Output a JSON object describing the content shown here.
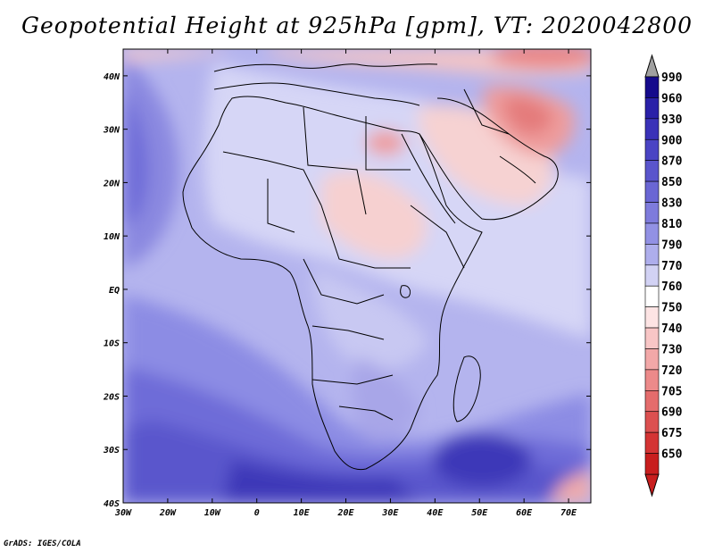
{
  "title": "Geopotential Height at 925hPa [gpm], VT: 2020042800",
  "credit": "GrADS: IGES/COLA",
  "map": {
    "lon_ticks": [
      "30W",
      "20W",
      "10W",
      "0",
      "10E",
      "20E",
      "30E",
      "40E",
      "50E",
      "60E",
      "70E"
    ],
    "lat_ticks": [
      "40N",
      "30N",
      "20N",
      "10N",
      "EQ",
      "10S",
      "20S",
      "30S",
      "40S"
    ],
    "lon_range": [
      -30,
      75
    ],
    "lat_range": [
      -40,
      45
    ]
  },
  "colorbar": {
    "levels": [
      "990",
      "960",
      "930",
      "900",
      "870",
      "850",
      "830",
      "810",
      "790",
      "770",
      "760",
      "750",
      "740",
      "730",
      "720",
      "705",
      "690",
      "675",
      "650"
    ],
    "colors": [
      "#150a8c",
      "#2a20a8",
      "#3a32b8",
      "#4a44c4",
      "#5a55cc",
      "#6a66d4",
      "#7e7bdc",
      "#9291e4",
      "#aeaeec",
      "#d2d2f4",
      "#ffffff",
      "#fde4e4",
      "#f8c6c6",
      "#f2a8a8",
      "#ec8a8a",
      "#e46c6c",
      "#dc5050",
      "#d43434",
      "#c81e1e"
    ],
    "arrow_top_color": "#a0a0a0",
    "arrow_bottom_color": "#c81e1e"
  }
}
